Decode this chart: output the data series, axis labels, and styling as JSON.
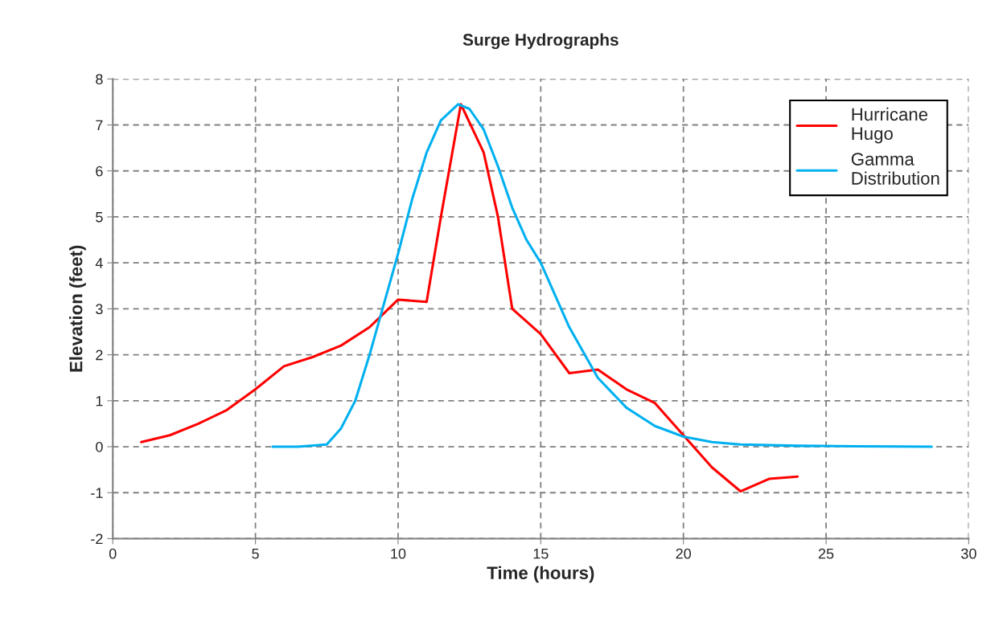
{
  "chart_data": {
    "type": "line",
    "title": "Surge Hydrographs",
    "xlabel": "Time (hours)",
    "ylabel": "Elevation (feet)",
    "xlim": [
      0,
      30
    ],
    "xticks": [
      0,
      5,
      10,
      15,
      20,
      25,
      30
    ],
    "ylim": [
      -2,
      8
    ],
    "yticks": [
      -2,
      -1,
      0,
      1,
      2,
      3,
      4,
      5,
      6,
      7,
      8
    ],
    "grid": true,
    "legend": "top right",
    "marker": "none",
    "line_style": "solid",
    "series": [
      {
        "name": "Hurricane\nHugo",
        "color": "#ff0000",
        "x": [
          1,
          2,
          3,
          4,
          5,
          6,
          7,
          8,
          9,
          10,
          11,
          11.5,
          12.2,
          13,
          13.5,
          14,
          15,
          16,
          17,
          18,
          19,
          20,
          21,
          22,
          23,
          24
        ],
        "values": [
          0.1,
          0.25,
          0.5,
          0.8,
          1.25,
          1.75,
          1.95,
          2.2,
          2.6,
          3.2,
          3.15,
          5.0,
          7.45,
          6.4,
          5.0,
          3.0,
          2.45,
          1.6,
          1.68,
          1.25,
          0.95,
          0.25,
          -0.45,
          -0.97,
          -0.7,
          -0.65
        ]
      },
      {
        "name": "Gamma\nDistribution",
        "color": "#00b0f0",
        "x": [
          5.6,
          6.5,
          7.5,
          8,
          8.5,
          9,
          9.5,
          10,
          10.5,
          11,
          11.5,
          12.1,
          12.5,
          13,
          13.5,
          14,
          14.5,
          15,
          16,
          17,
          18,
          19,
          20,
          21,
          22,
          24,
          26,
          28.7
        ],
        "values": [
          0,
          0,
          0.05,
          0.4,
          1.0,
          2.0,
          3.1,
          4.2,
          5.4,
          6.4,
          7.1,
          7.45,
          7.35,
          6.9,
          6.1,
          5.2,
          4.5,
          4.0,
          2.6,
          1.5,
          0.85,
          0.45,
          0.22,
          0.1,
          0.05,
          0.02,
          0.01,
          0
        ]
      }
    ]
  }
}
